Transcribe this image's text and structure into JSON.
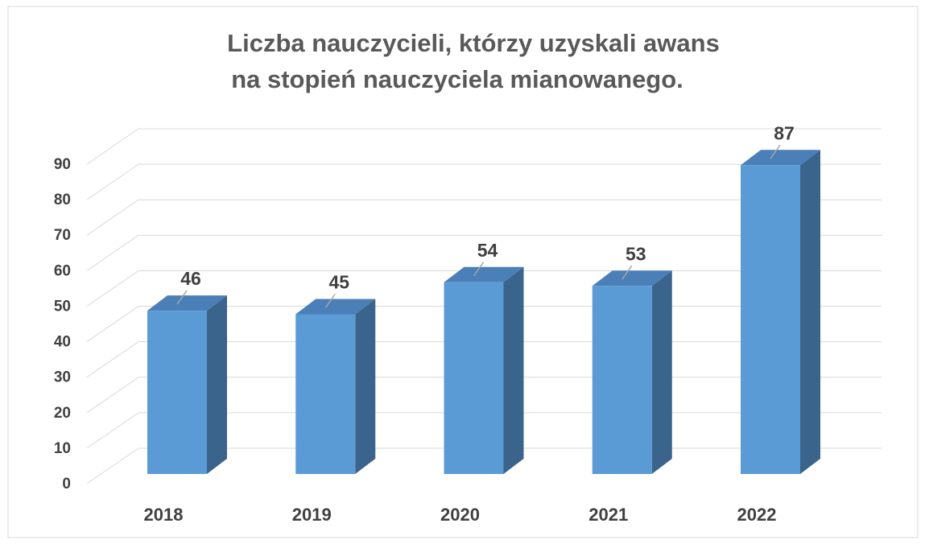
{
  "chart_data": {
    "type": "bar3d",
    "title": [
      "Liczba nauczycieli, którzy uzyskali awans",
      "na stopień nauczyciela mianowanego."
    ],
    "categories": [
      "2018",
      "2019",
      "2020",
      "2021",
      "2022"
    ],
    "values": [
      46,
      45,
      54,
      53,
      87
    ],
    "color": "#5b9bd5",
    "ylim": [
      0,
      90
    ],
    "yticks": [
      0,
      10,
      20,
      30,
      40,
      50,
      60,
      70,
      80,
      90
    ],
    "grid": true
  }
}
